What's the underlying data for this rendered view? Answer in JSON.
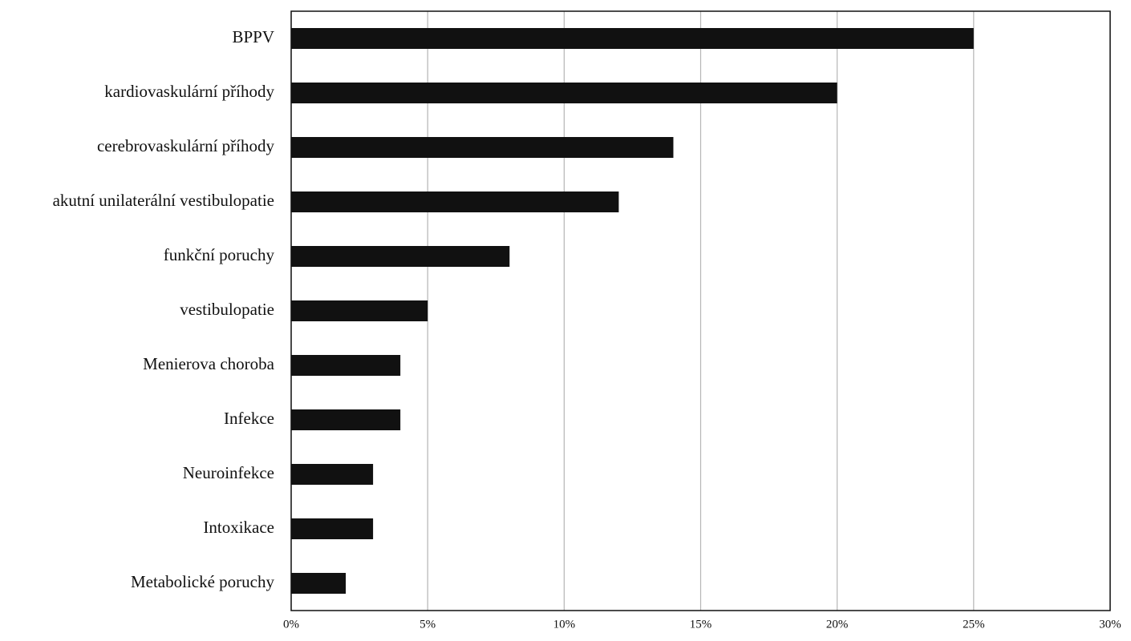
{
  "chart_data": {
    "type": "bar",
    "orientation": "horizontal",
    "categories": [
      "BPPV",
      "kardiovaskulární příhody",
      "cerebrovaskulární příhody",
      "akutní unilaterální vestibulopatie",
      "funkční poruchy",
      "vestibulopatie",
      "Menierova choroba",
      "Infekce",
      "Neuroinfekce",
      "Intoxikace",
      "Metabolické poruchy"
    ],
    "values": [
      25,
      20,
      14,
      12,
      8,
      5,
      4,
      4,
      3,
      3,
      2
    ],
    "color": "#111111",
    "xlim": [
      0,
      30
    ],
    "xticks": [
      {
        "value": 0,
        "label": "0%"
      },
      {
        "value": 5,
        "label": "5%"
      },
      {
        "value": 10,
        "label": "10%"
      },
      {
        "value": 15,
        "label": "15%"
      },
      {
        "value": 20,
        "label": "20%"
      },
      {
        "value": 25,
        "label": "25%"
      },
      {
        "value": 30,
        "label": "30%"
      }
    ],
    "grid": true
  }
}
